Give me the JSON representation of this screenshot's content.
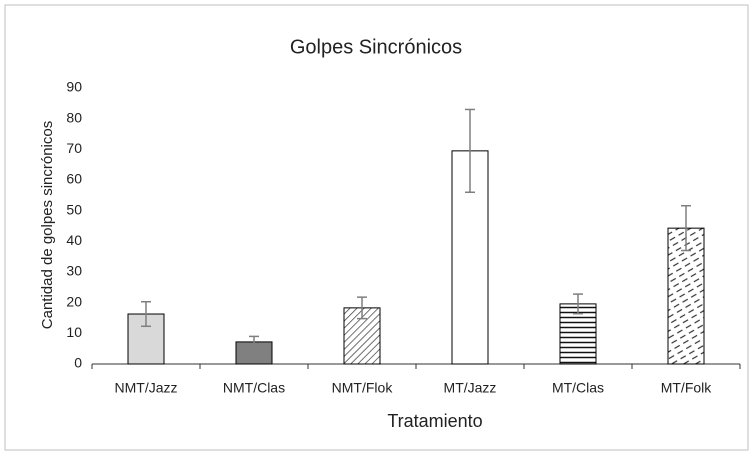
{
  "chart_data": {
    "type": "bar",
    "title": "Golpes Sincrónicos",
    "x_label": "Tratamiento",
    "y_label": "Cantidad de golpes sincrónicos",
    "categories": [
      "NMT/Jazz",
      "NMT/Clas",
      "NMT/Flok",
      "MT/Jazz",
      "MT/Clas",
      "MT/Folk"
    ],
    "values": [
      16.3,
      7.2,
      18.3,
      69.5,
      19.6,
      44.3
    ],
    "errors": [
      4,
      1.8,
      3.5,
      13.5,
      3.2,
      7.3
    ],
    "colors": [
      "#d9d9d9",
      "#808080",
      "#ffffff",
      "#ffffff",
      "#ffffff",
      "#ffffff"
    ],
    "patterns": [
      null,
      null,
      "diagonal",
      null,
      "horizontal",
      "dashed-diagonal"
    ],
    "error_color": "#7f7f7f",
    "ylim": [
      0,
      90
    ],
    "yticks": [
      0,
      10,
      20,
      30,
      40,
      50,
      60,
      70,
      80,
      90
    ],
    "grid": false
  }
}
